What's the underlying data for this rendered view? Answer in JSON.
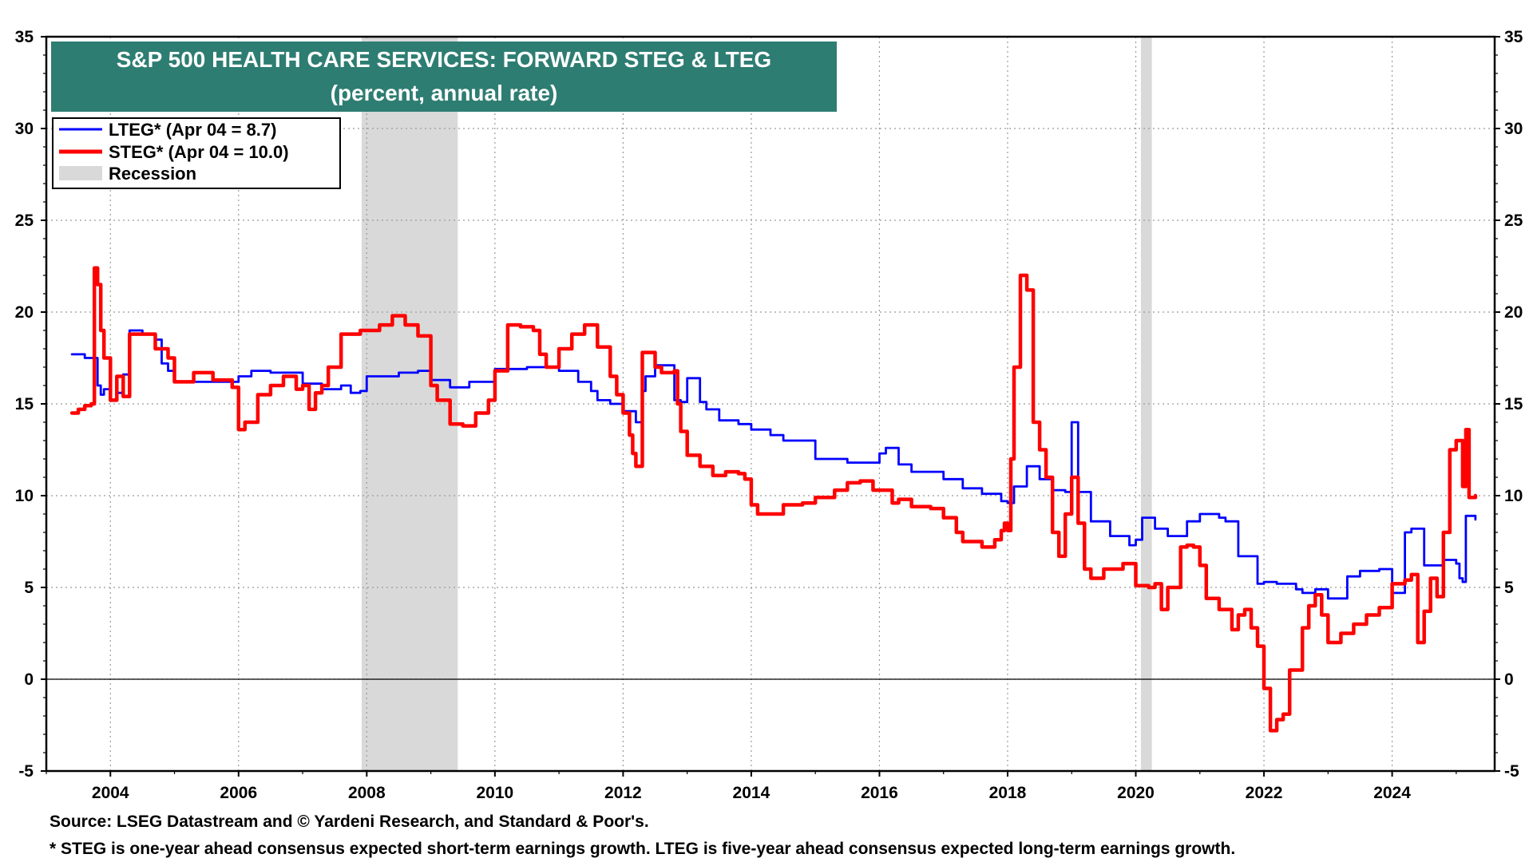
{
  "chart_data": {
    "type": "line",
    "title": "S&P 500 HEALTH CARE SERVICES: FORWARD STEG & LTEG",
    "subtitle": "(percent, annual rate)",
    "xlabel": "",
    "ylabel": "",
    "xlim": [
      2003.0,
      2025.6
    ],
    "ylim": [
      -5,
      35
    ],
    "y_ticks": [
      -5,
      0,
      5,
      10,
      15,
      20,
      25,
      30,
      35
    ],
    "y_tick_labels": [
      "-5",
      "0",
      "5",
      "10",
      "15",
      "20",
      "25",
      "30",
      "35"
    ],
    "x_ticks": [
      2004,
      2006,
      2008,
      2010,
      2012,
      2014,
      2016,
      2018,
      2020,
      2022,
      2024
    ],
    "x_tick_labels": [
      "2004",
      "2006",
      "2008",
      "2010",
      "2012",
      "2014",
      "2016",
      "2018",
      "2020",
      "2022",
      "2024"
    ],
    "grid": true,
    "zero_line": true,
    "legend_position": "top-left",
    "legend": [
      {
        "label": "LTEG* (Apr 04 = 8.7)",
        "kind": "line",
        "color": "#0000ff"
      },
      {
        "label": "STEG* (Apr 04 = 10.0)",
        "kind": "line",
        "color": "#ff0000"
      },
      {
        "label": "Recession",
        "kind": "area",
        "color": "#d9d9d9"
      }
    ],
    "recessions": [
      {
        "start": 2007.92,
        "end": 2009.42
      },
      {
        "start": 2020.08,
        "end": 2020.25
      }
    ],
    "series": [
      {
        "name": "LTEG",
        "color": "#0000ff",
        "x": [
          2003.4,
          2003.5,
          2003.6,
          2003.75,
          2003.8,
          2003.85,
          2003.9,
          2004.0,
          2004.1,
          2004.2,
          2004.3,
          2004.5,
          2004.7,
          2004.8,
          2004.9,
          2005.0,
          2005.5,
          2006.0,
          2006.2,
          2006.5,
          2007.0,
          2007.3,
          2007.6,
          2007.75,
          2007.9,
          2008.0,
          2008.5,
          2008.8,
          2009.0,
          2009.3,
          2009.6,
          2010.0,
          2010.5,
          2011.0,
          2011.3,
          2011.5,
          2011.6,
          2011.8,
          2012.0,
          2012.2,
          2012.3,
          2012.35,
          2012.5,
          2012.8,
          2012.9,
          2013.0,
          2013.2,
          2013.3,
          2013.5,
          2013.8,
          2014.0,
          2014.3,
          2014.5,
          2015.0,
          2015.5,
          2016.0,
          2016.1,
          2016.3,
          2016.5,
          2017.0,
          2017.3,
          2017.6,
          2017.9,
          2018.0,
          2018.1,
          2018.3,
          2018.5,
          2018.7,
          2018.9,
          2019.0,
          2019.1,
          2019.3,
          2019.6,
          2019.9,
          2020.0,
          2020.1,
          2020.3,
          2020.5,
          2020.8,
          2021.0,
          2021.3,
          2021.4,
          2021.6,
          2021.9,
          2022.0,
          2022.2,
          2022.5,
          2022.6,
          2022.8,
          2023.0,
          2023.3,
          2023.5,
          2023.8,
          2024.0,
          2024.2,
          2024.3,
          2024.5,
          2024.8,
          2025.0,
          2025.05,
          2025.1,
          2025.15,
          2025.3
        ],
        "values": [
          17.7,
          17.7,
          17.5,
          17.5,
          16.0,
          15.5,
          15.8,
          15.2,
          15.6,
          16.6,
          19.0,
          18.8,
          18.5,
          17.2,
          16.8,
          16.2,
          16.2,
          16.5,
          16.8,
          16.7,
          16.1,
          15.8,
          16.0,
          15.6,
          15.7,
          16.5,
          16.7,
          16.8,
          16.3,
          15.9,
          16.2,
          16.9,
          17.0,
          16.8,
          16.2,
          15.7,
          15.2,
          15.0,
          14.6,
          14.0,
          15.7,
          16.5,
          17.1,
          15.2,
          15.1,
          16.4,
          15.1,
          14.7,
          14.1,
          13.9,
          13.6,
          13.3,
          13.0,
          12.0,
          11.8,
          12.3,
          12.6,
          11.7,
          11.3,
          10.9,
          10.4,
          10.1,
          9.7,
          9.6,
          10.5,
          11.6,
          10.9,
          10.3,
          10.2,
          14.0,
          10.2,
          8.6,
          7.8,
          7.3,
          7.6,
          8.8,
          8.2,
          7.8,
          8.6,
          9.0,
          8.8,
          8.6,
          6.7,
          5.2,
          5.3,
          5.2,
          4.9,
          4.7,
          4.9,
          4.4,
          5.6,
          5.9,
          6.0,
          4.7,
          8.0,
          8.2,
          6.2,
          6.5,
          6.3,
          5.5,
          5.3,
          8.9,
          8.7
        ]
      },
      {
        "name": "STEG",
        "color": "#ff0000",
        "x": [
          2003.4,
          2003.5,
          2003.6,
          2003.7,
          2003.75,
          2003.8,
          2003.85,
          2003.9,
          2004.0,
          2004.1,
          2004.2,
          2004.3,
          2004.5,
          2004.7,
          2004.9,
          2005.0,
          2005.3,
          2005.6,
          2005.9,
          2006.0,
          2006.1,
          2006.3,
          2006.5,
          2006.7,
          2006.9,
          2007.0,
          2007.1,
          2007.2,
          2007.3,
          2007.4,
          2007.6,
          2007.9,
          2008.0,
          2008.2,
          2008.4,
          2008.6,
          2008.8,
          2009.0,
          2009.1,
          2009.3,
          2009.5,
          2009.7,
          2009.9,
          2010.0,
          2010.2,
          2010.4,
          2010.6,
          2010.7,
          2010.8,
          2011.0,
          2011.2,
          2011.4,
          2011.6,
          2011.8,
          2011.9,
          2012.0,
          2012.1,
          2012.15,
          2012.2,
          2012.3,
          2012.5,
          2012.6,
          2012.8,
          2012.85,
          2012.9,
          2013.0,
          2013.2,
          2013.4,
          2013.6,
          2013.8,
          2013.9,
          2014.0,
          2014.1,
          2014.2,
          2014.5,
          2014.8,
          2015.0,
          2015.3,
          2015.5,
          2015.7,
          2015.9,
          2016.0,
          2016.2,
          2016.3,
          2016.5,
          2016.8,
          2017.0,
          2017.2,
          2017.3,
          2017.6,
          2017.8,
          2017.9,
          2017.95,
          2018.0,
          2018.05,
          2018.1,
          2018.2,
          2018.3,
          2018.4,
          2018.5,
          2018.6,
          2018.7,
          2018.8,
          2018.9,
          2019.0,
          2019.1,
          2019.2,
          2019.3,
          2019.5,
          2019.8,
          2020.0,
          2020.2,
          2020.3,
          2020.4,
          2020.5,
          2020.7,
          2020.8,
          2020.9,
          2021.0,
          2021.1,
          2021.3,
          2021.5,
          2021.6,
          2021.7,
          2021.8,
          2021.9,
          2022.0,
          2022.1,
          2022.2,
          2022.3,
          2022.4,
          2022.6,
          2022.7,
          2022.8,
          2022.9,
          2023.0,
          2023.2,
          2023.4,
          2023.6,
          2023.8,
          2024.0,
          2024.2,
          2024.3,
          2024.4,
          2024.5,
          2024.6,
          2024.7,
          2024.8,
          2024.9,
          2025.0,
          2025.1,
          2025.15,
          2025.2,
          2025.3
        ],
        "values": [
          14.5,
          14.7,
          14.9,
          15.0,
          22.4,
          21.5,
          19.0,
          17.5,
          15.2,
          16.5,
          15.4,
          18.8,
          18.8,
          18.0,
          17.5,
          16.2,
          16.7,
          16.3,
          15.9,
          13.6,
          14.0,
          15.5,
          16.0,
          16.5,
          15.8,
          16.0,
          14.7,
          15.6,
          16.0,
          17.0,
          18.8,
          19.0,
          19.0,
          19.3,
          19.8,
          19.3,
          18.7,
          16.0,
          15.2,
          13.9,
          13.8,
          14.5,
          15.2,
          16.8,
          19.3,
          19.2,
          19.0,
          17.7,
          17.0,
          18.0,
          18.8,
          19.3,
          18.1,
          16.5,
          15.5,
          14.5,
          13.3,
          12.3,
          11.6,
          17.8,
          17.0,
          16.7,
          16.8,
          15.0,
          13.5,
          12.2,
          11.6,
          11.1,
          11.3,
          11.2,
          10.9,
          9.5,
          9.0,
          9.0,
          9.5,
          9.6,
          9.9,
          10.3,
          10.7,
          10.8,
          10.3,
          10.3,
          9.6,
          9.8,
          9.4,
          9.3,
          8.8,
          8.0,
          7.5,
          7.2,
          7.6,
          8.1,
          8.5,
          8.1,
          12.0,
          17.0,
          22.0,
          21.2,
          14.0,
          12.5,
          11.0,
          8.0,
          6.7,
          9.0,
          11.0,
          8.5,
          6.0,
          5.5,
          6.0,
          6.3,
          5.1,
          5.0,
          5.2,
          3.8,
          5.0,
          7.2,
          7.3,
          7.2,
          6.2,
          4.4,
          3.8,
          2.7,
          3.5,
          3.8,
          2.8,
          1.8,
          -0.5,
          -2.8,
          -2.2,
          -1.9,
          0.5,
          2.8,
          4.0,
          4.6,
          3.5,
          2.0,
          2.5,
          3.0,
          3.5,
          3.9,
          5.2,
          5.4,
          5.7,
          2.0,
          3.7,
          5.5,
          4.5,
          8.0,
          12.5,
          13.0,
          10.5,
          13.6,
          9.9,
          10.0
        ]
      }
    ]
  },
  "footnotes": {
    "source": "Source: LSEG Datastream and © Yardeni Research, and Standard & Poor's.",
    "note": "* STEG is one-year ahead consensus expected short-term earnings growth. LTEG is five-year ahead consensus expected long-term earnings growth."
  }
}
